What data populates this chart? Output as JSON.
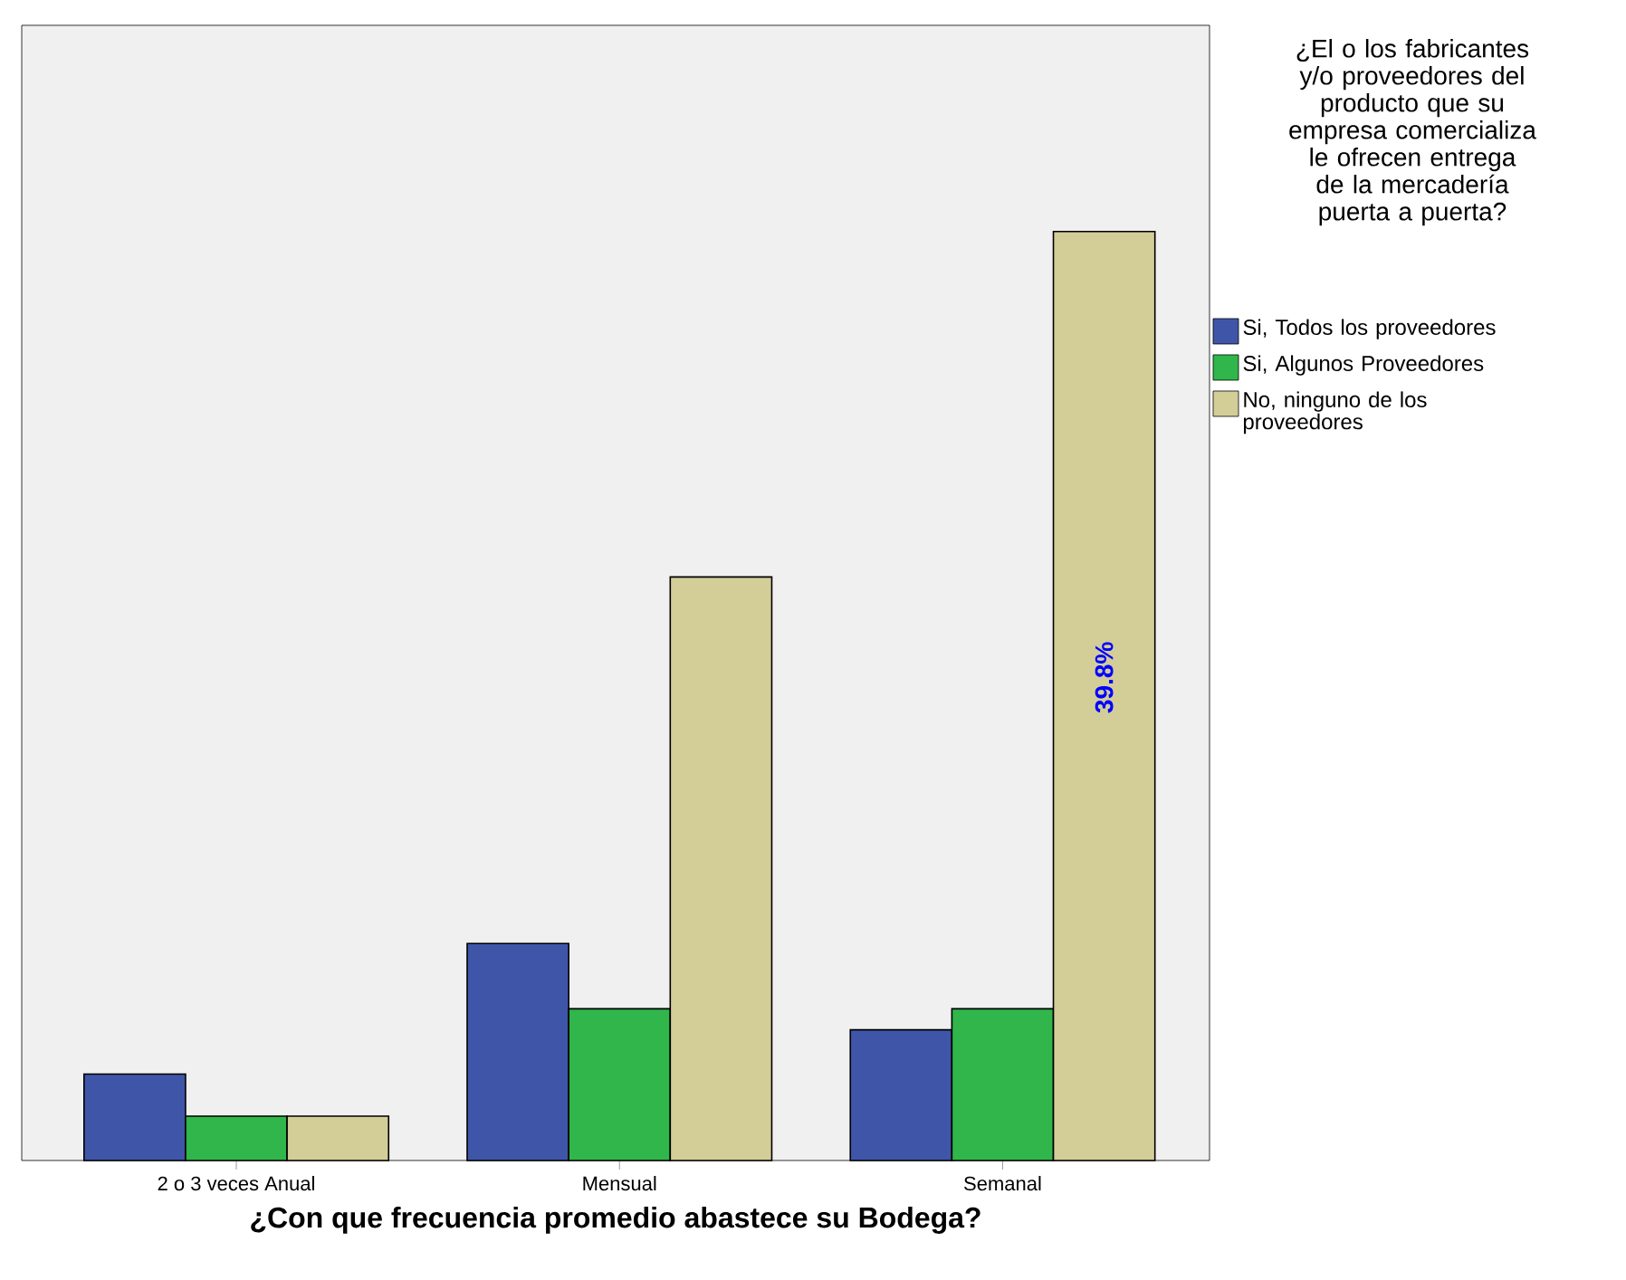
{
  "chart_data": {
    "type": "bar",
    "xlabel": "¿Con que frecuencia promedio abastece su Bodega?",
    "legend_title": "¿El o los fabricantes y/o proveedores del producto que su empresa comercializa le ofrecen entrega de la mercadería puerta a puerta?",
    "categories": [
      "2 o 3 veces Anual",
      "Mensual",
      "Semanal"
    ],
    "series": [
      {
        "name": "Si, Todos los proveedores",
        "color": "#3f56a8",
        "values": [
          3.7,
          9.3,
          5.6
        ]
      },
      {
        "name": "Si, Algunos Proveedores",
        "color": "#30b64a",
        "values": [
          1.9,
          6.5,
          6.5
        ]
      },
      {
        "name": "No, ninguno de los proveedores",
        "color": "#d3cd98",
        "values": [
          1.9,
          25.0,
          39.8
        ],
        "value_labels": [
          null,
          null,
          "39.8%"
        ]
      }
    ],
    "legend": "right",
    "grid": false
  }
}
